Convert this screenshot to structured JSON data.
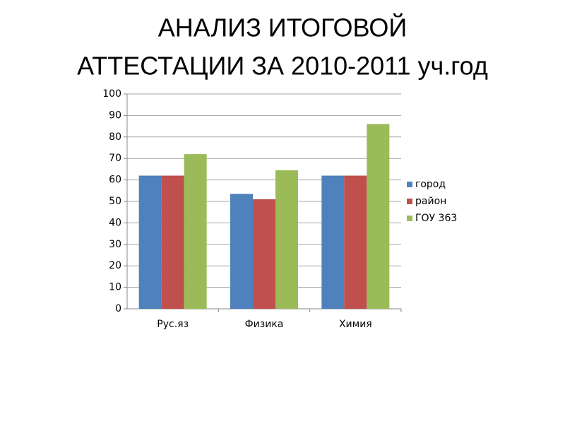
{
  "chart_data": {
    "type": "bar",
    "title": [
      "АНАЛИЗ ИТОГОВОЙ",
      "АТТЕСТАЦИИ ЗА 2010-2011 уч.год"
    ],
    "categories": [
      "Рус.яз",
      "Физика",
      "Химия"
    ],
    "series": [
      {
        "name": "город",
        "color": "#4f81bd",
        "values": [
          62,
          53.5,
          62
        ]
      },
      {
        "name": "район",
        "color": "#c0504d",
        "values": [
          62,
          51,
          62
        ]
      },
      {
        "name": "ГОУ 363",
        "color": "#9bbb59",
        "values": [
          72,
          64.5,
          86
        ]
      }
    ],
    "ylim": [
      0,
      100
    ],
    "yticks": [
      0,
      10,
      20,
      30,
      40,
      50,
      60,
      70,
      80,
      90,
      100
    ],
    "grid": true,
    "legend": "right"
  }
}
